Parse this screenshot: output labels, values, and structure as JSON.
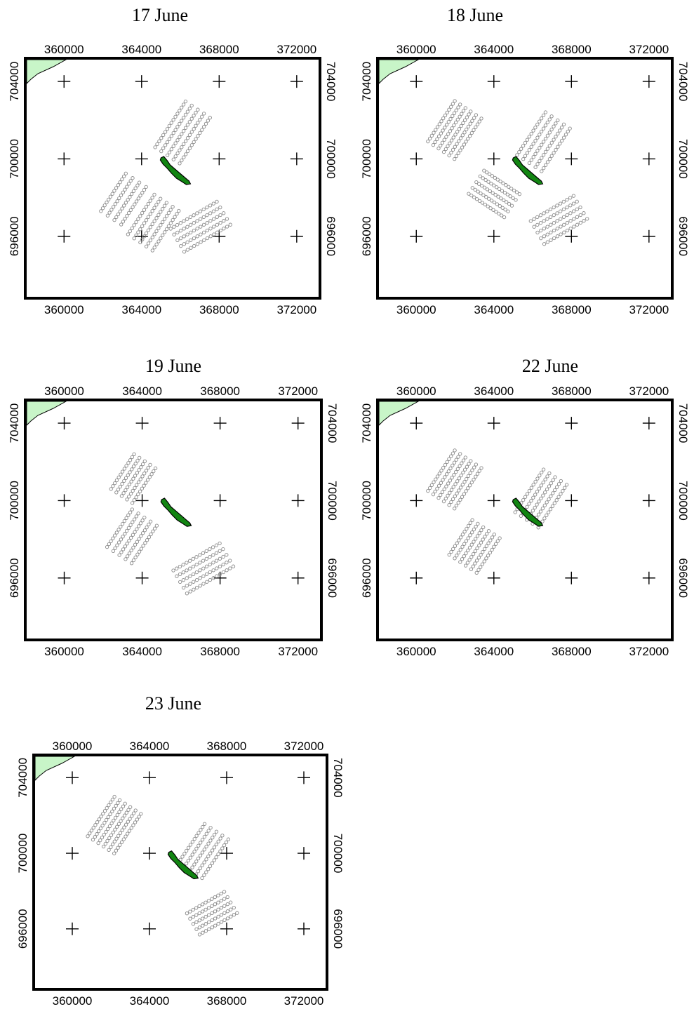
{
  "colors": {
    "coast": "#c8f5c8",
    "island": "#128512",
    "points": "#8a8a8a",
    "frame": "#000000"
  },
  "shared_axes": {
    "easting_ticks": [
      "360000",
      "364000",
      "368000",
      "372000"
    ],
    "northing_ticks": [
      "704000",
      "700000",
      "696000"
    ]
  },
  "panels": [
    {
      "id": "17-june",
      "title": "17 June",
      "grids": [
        {
          "lines": 4,
          "points": 14,
          "start": [
            361900,
            697300
          ],
          "along": [
            0.55,
            0.83
          ],
          "across": [
            0.83,
            -0.55
          ],
          "spacing": 180,
          "line_spacing": 420
        },
        {
          "lines": 5,
          "points": 14,
          "start": [
            363300,
            696100
          ],
          "along": [
            0.55,
            0.83
          ],
          "across": [
            0.83,
            -0.55
          ],
          "spacing": 190,
          "line_spacing": 380
        },
        {
          "lines": 5,
          "points": 16,
          "start": [
            364700,
            700600
          ],
          "along": [
            0.55,
            0.83
          ],
          "across": [
            0.83,
            -0.55
          ],
          "spacing": 190,
          "line_spacing": 380
        },
        {
          "lines": 5,
          "points": 15,
          "start": [
            366200,
            695200
          ],
          "along": [
            0.85,
            0.5
          ],
          "across": [
            -0.5,
            0.85
          ],
          "spacing": 200,
          "line_spacing": 350
        }
      ]
    },
    {
      "id": "18-june",
      "title": "18 June",
      "grids": [
        {
          "lines": 6,
          "points": 15,
          "start": [
            360600,
            700900
          ],
          "along": [
            0.55,
            0.83
          ],
          "across": [
            0.83,
            -0.55
          ],
          "spacing": 180,
          "line_spacing": 330
        },
        {
          "lines": 5,
          "points": 14,
          "start": [
            362700,
            698200
          ],
          "along": [
            0.83,
            -0.55
          ],
          "across": [
            0.55,
            0.83
          ],
          "spacing": 170,
          "line_spacing": 360
        },
        {
          "lines": 5,
          "points": 15,
          "start": [
            365200,
            700200
          ],
          "along": [
            0.55,
            0.83
          ],
          "across": [
            0.83,
            -0.55
          ],
          "spacing": 190,
          "line_spacing": 380
        },
        {
          "lines": 5,
          "points": 14,
          "start": [
            366600,
            695600
          ],
          "along": [
            0.85,
            0.5
          ],
          "across": [
            -0.5,
            0.85
          ],
          "spacing": 200,
          "line_spacing": 350
        }
      ]
    },
    {
      "id": "19-june",
      "title": "19 June",
      "grids": [
        {
          "lines": 5,
          "points": 13,
          "start": [
            362400,
            700600
          ],
          "along": [
            0.55,
            0.83
          ],
          "across": [
            0.83,
            -0.55
          ],
          "spacing": 180,
          "line_spacing": 330
        },
        {
          "lines": 5,
          "points": 14,
          "start": [
            362200,
            697600
          ],
          "along": [
            0.55,
            0.83
          ],
          "across": [
            0.83,
            -0.55
          ],
          "spacing": 180,
          "line_spacing": 380
        },
        {
          "lines": 5,
          "points": 15,
          "start": [
            366300,
            695200
          ],
          "along": [
            0.85,
            0.5
          ],
          "across": [
            -0.5,
            0.85
          ],
          "spacing": 200,
          "line_spacing": 350
        }
      ]
    },
    {
      "id": "22-june",
      "title": "22 June",
      "grids": [
        {
          "lines": 6,
          "points": 15,
          "start": [
            360600,
            700500
          ],
          "along": [
            0.55,
            0.83
          ],
          "across": [
            0.83,
            -0.55
          ],
          "spacing": 180,
          "line_spacing": 330
        },
        {
          "lines": 5,
          "points": 15,
          "start": [
            365100,
            699400
          ],
          "along": [
            0.55,
            0.83
          ],
          "across": [
            0.83,
            -0.55
          ],
          "spacing": 190,
          "line_spacing": 360
        },
        {
          "lines": 6,
          "points": 13,
          "start": [
            361700,
            697200
          ],
          "along": [
            0.55,
            0.83
          ],
          "across": [
            0.83,
            -0.55
          ],
          "spacing": 180,
          "line_spacing": 340
        }
      ]
    },
    {
      "id": "23-june",
      "title": "23 June",
      "grids": [
        {
          "lines": 6,
          "points": 15,
          "start": [
            360800,
            700900
          ],
          "along": [
            0.55,
            0.83
          ],
          "across": [
            0.83,
            -0.55
          ],
          "spacing": 180,
          "line_spacing": 330
        },
        {
          "lines": 5,
          "points": 14,
          "start": [
            365500,
            699500
          ],
          "along": [
            0.55,
            0.83
          ],
          "across": [
            0.83,
            -0.55
          ],
          "spacing": 190,
          "line_spacing": 370
        },
        {
          "lines": 5,
          "points": 13,
          "start": [
            366600,
            695700
          ],
          "along": [
            0.85,
            0.5
          ],
          "across": [
            -0.5,
            0.85
          ],
          "spacing": 190,
          "line_spacing": 330
        }
      ]
    }
  ]
}
